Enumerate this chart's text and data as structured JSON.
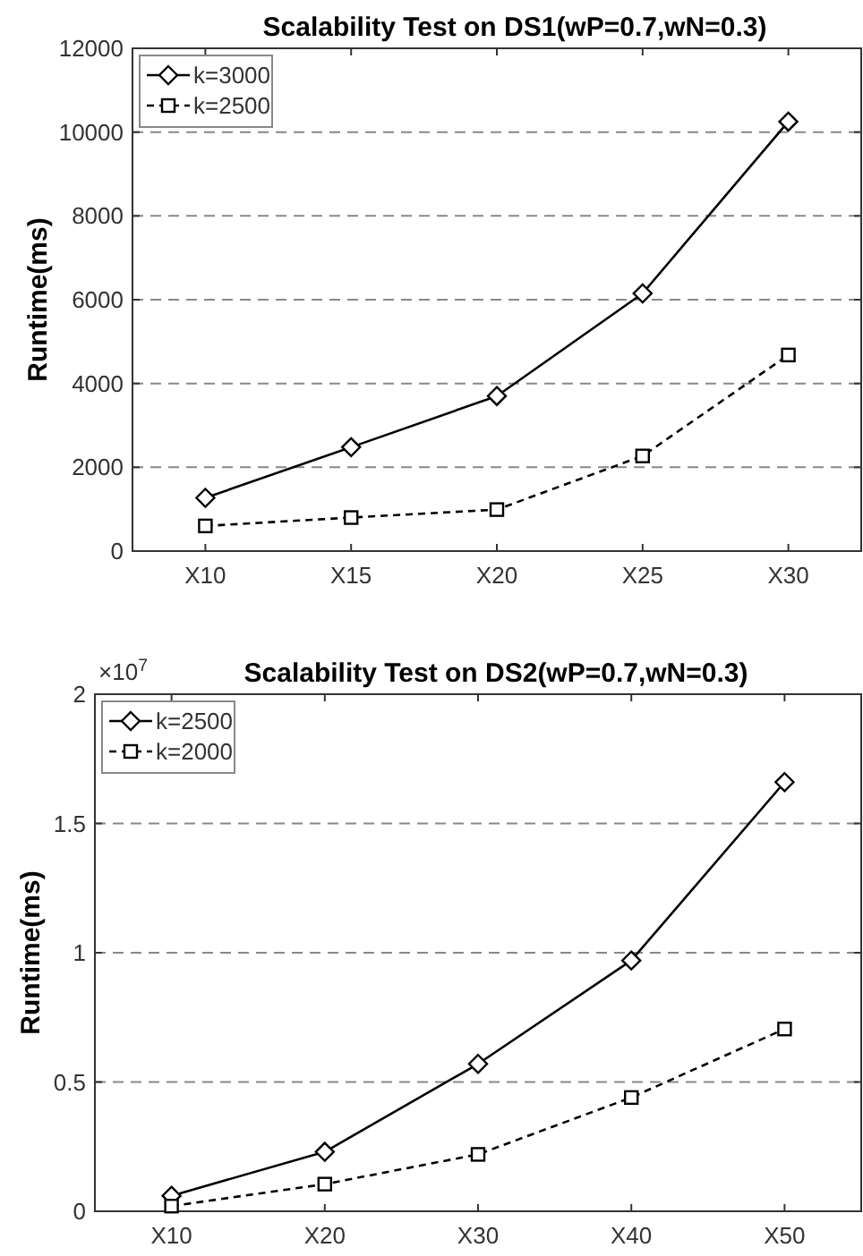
{
  "chart_data": [
    {
      "type": "line",
      "title": "Scalability Test on DS1(wP=0.7,wN=0.3)",
      "ylabel": "Runtime(ms)",
      "categories": [
        "X10",
        "X15",
        "X20",
        "X25",
        "X30"
      ],
      "series": [
        {
          "name": "k=3000",
          "color": "#000000",
          "values": [
            1270,
            2480,
            3700,
            6150,
            10250
          ],
          "marker": "diamond",
          "line_style": "solid"
        },
        {
          "name": "k=2500",
          "color": "#000000",
          "values": [
            600,
            800,
            990,
            2270,
            4680
          ],
          "marker": "square",
          "line_style": "dashed"
        }
      ],
      "ylim": [
        0,
        12000
      ],
      "yticks": [
        0,
        2000,
        4000,
        6000,
        8000,
        10000,
        12000
      ],
      "grid": "y",
      "legend": "top left"
    },
    {
      "type": "line",
      "title": "Scalability Test on DS2(wP=0.7,wN=0.3)",
      "ylabel": "Runtime(ms)",
      "categories": [
        "X10",
        "X20",
        "X30",
        "X40",
        "X50"
      ],
      "series": [
        {
          "name": "k=2500",
          "color": "#000000",
          "values": [
            0.06,
            0.23,
            0.57,
            0.97,
            1.66
          ],
          "marker": "diamond",
          "line_style": "solid"
        },
        {
          "name": "k=2000",
          "color": "#000000",
          "values": [
            0.02,
            0.105,
            0.22,
            0.44,
            0.705
          ],
          "marker": "square",
          "line_style": "dashed"
        }
      ],
      "ylim": [
        0,
        2
      ],
      "yticks": [
        0,
        0.5,
        1,
        1.5,
        2
      ],
      "grid": "y",
      "legend": "top left",
      "annotations": [
        "×10$^{7}$"
      ]
    }
  ]
}
